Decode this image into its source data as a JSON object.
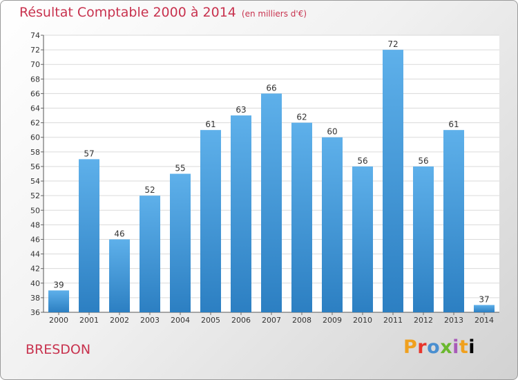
{
  "title": "Résultat Comptable 2000 à 2014",
  "subtitle": "(en milliers d'€)",
  "place": "BRESDON",
  "brand": "Proxiti",
  "colors": {
    "accent": "#c8324e",
    "bar_top": "#5eb0ea",
    "bar_bottom": "#2c7fc2"
  },
  "chart_data": {
    "type": "bar",
    "title": "Résultat Comptable 2000 à 2014",
    "subtitle": "(en milliers d'€)",
    "categories": [
      "2000",
      "2001",
      "2002",
      "2003",
      "2004",
      "2005",
      "2006",
      "2007",
      "2008",
      "2009",
      "2010",
      "2011",
      "2012",
      "2013",
      "2014"
    ],
    "values": [
      39,
      57,
      46,
      52,
      55,
      61,
      63,
      66,
      62,
      60,
      56,
      72,
      56,
      61,
      37
    ],
    "ylim": [
      36,
      74
    ],
    "yticks": [
      36,
      38,
      40,
      42,
      44,
      46,
      48,
      50,
      52,
      54,
      56,
      58,
      60,
      62,
      64,
      66,
      68,
      70,
      72,
      74
    ],
    "grid": true,
    "legend": "none"
  }
}
